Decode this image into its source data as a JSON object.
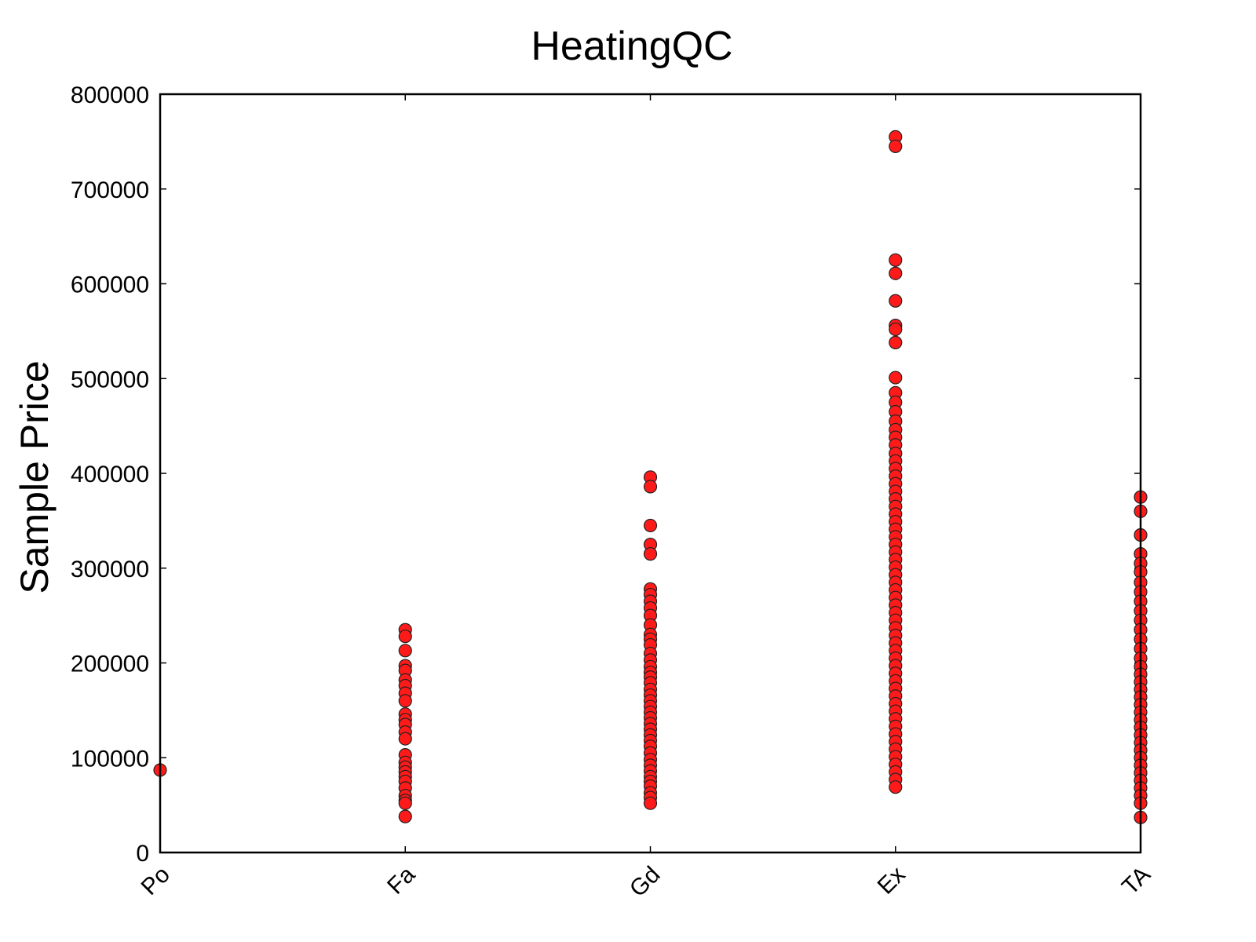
{
  "chart_data": {
    "type": "scatter",
    "title": "HeatingQC",
    "xlabel": "",
    "ylabel": "Sample Price",
    "categories": [
      "Po",
      "Fa",
      "Gd",
      "Ex",
      "TA"
    ],
    "ylim": [
      0,
      800000
    ],
    "yticks": [
      "0",
      "100000",
      "200000",
      "300000",
      "400000",
      "500000",
      "600000",
      "700000",
      "800000"
    ],
    "grid": false,
    "marker_color": "#ff1a1a",
    "series": [
      {
        "category": "Po",
        "values": [
          87000
        ]
      },
      {
        "category": "Fa",
        "values": [
          235000,
          228000,
          213000,
          197000,
          192000,
          182000,
          176000,
          168000,
          160000,
          146000,
          140000,
          135000,
          127000,
          120000,
          103000,
          95000,
          90000,
          85000,
          80000,
          75000,
          68000,
          60000,
          55000,
          52000,
          38000
        ]
      },
      {
        "category": "Gd",
        "values": [
          396000,
          386000,
          345000,
          325000,
          315000,
          278000,
          272000,
          265000,
          258000,
          250000,
          240000,
          230000,
          225000,
          219000,
          210000,
          203000,
          196000,
          190000,
          185000,
          179000,
          172000,
          166000,
          160000,
          154000,
          148000,
          142000,
          136000,
          130000,
          124000,
          118000,
          112000,
          105000,
          98000,
          92000,
          86000,
          80000,
          75000,
          70000,
          63000,
          58000,
          52000
        ]
      },
      {
        "category": "Ex",
        "values": [
          755000,
          745000,
          625000,
          611000,
          582000,
          556000,
          552000,
          538000,
          501000,
          485000,
          475000,
          465000,
          455000,
          446000,
          438000,
          430000,
          421000,
          413000,
          405000,
          397000,
          389000,
          381000,
          373000,
          365000,
          357000,
          349000,
          341000,
          333000,
          325000,
          317000,
          309000,
          301000,
          293000,
          285000,
          277000,
          269000,
          261000,
          253000,
          245000,
          237000,
          229000,
          221000,
          213000,
          205000,
          197000,
          189000,
          181000,
          173000,
          165000,
          157000,
          149000,
          141000,
          133000,
          125000,
          117000,
          109000,
          101000,
          93000,
          85000,
          77000,
          69000
        ]
      },
      {
        "category": "TA",
        "values": [
          375000,
          360000,
          335000,
          315000,
          305000,
          296000,
          285000,
          275000,
          265000,
          255000,
          245000,
          235000,
          225000,
          215000,
          205000,
          196000,
          188000,
          180000,
          172000,
          164000,
          156000,
          148000,
          140000,
          132000,
          124000,
          116000,
          108000,
          100000,
          92000,
          84000,
          76000,
          68000,
          60000,
          52000,
          37000
        ]
      }
    ]
  }
}
